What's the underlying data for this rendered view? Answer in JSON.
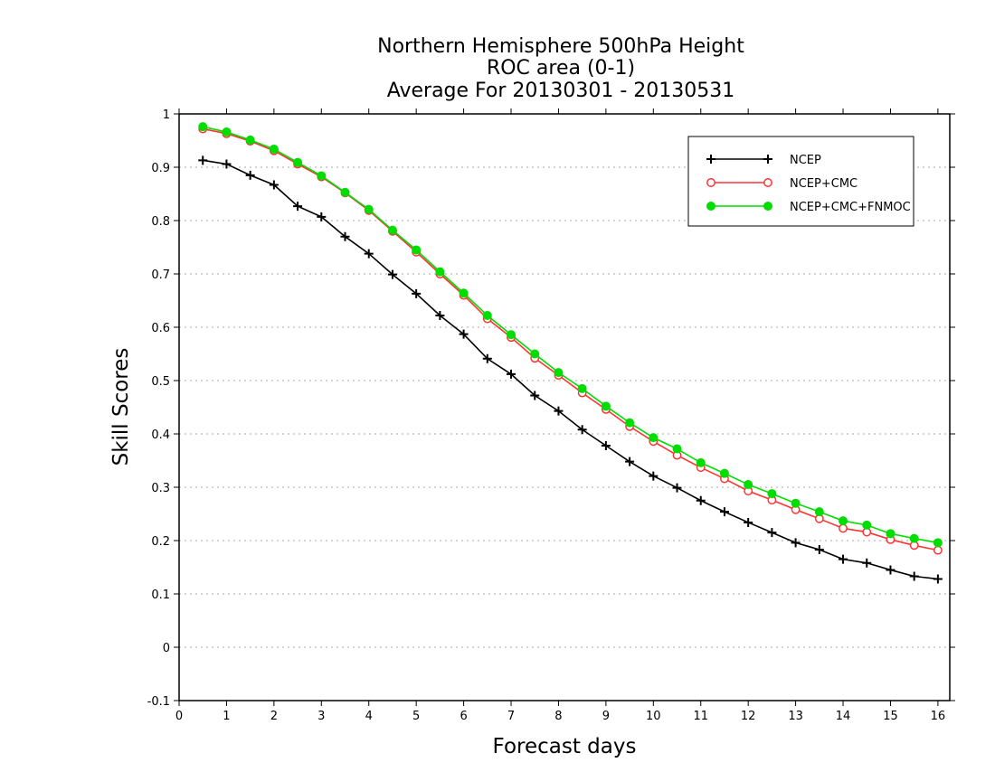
{
  "chart_data": {
    "type": "line",
    "title_lines": [
      "Northern Hemisphere 500hPa Height",
      "ROC area (0-1)",
      "Average For 20130301 - 20130531"
    ],
    "xlabel": "Forecast days",
    "ylabel": "Skill Scores",
    "xlim": [
      0,
      16.25
    ],
    "ylim": [
      -0.1,
      1
    ],
    "xticks": [
      0,
      1,
      2,
      3,
      4,
      5,
      6,
      7,
      8,
      9,
      10,
      11,
      12,
      13,
      14,
      15,
      16
    ],
    "yticks": [
      -0.1,
      0,
      0.1,
      0.2,
      0.3,
      0.4,
      0.5,
      0.6,
      0.7,
      0.8,
      0.9,
      1
    ],
    "ytick_labels": [
      "-0.1",
      "0",
      "0.1",
      "0.2",
      "0.3",
      "0.4",
      "0.5",
      "0.6",
      "0.7",
      "0.8",
      "0.9",
      "1"
    ],
    "grid": "horizontal dotted",
    "legend_position": "top-right",
    "x": [
      0.5,
      1.0,
      1.5,
      2.0,
      2.5,
      3.0,
      3.5,
      4.0,
      4.5,
      5.0,
      5.5,
      6.0,
      6.5,
      7.0,
      7.5,
      8.0,
      8.5,
      9.0,
      9.5,
      10.0,
      10.5,
      11.0,
      11.5,
      12.0,
      12.5,
      13.0,
      13.5,
      14.0,
      14.5,
      15.0,
      15.5,
      16.0
    ],
    "series": [
      {
        "name": "NCEP",
        "color": "#000000",
        "marker": "plus",
        "values": [
          0.913,
          0.906,
          0.885,
          0.867,
          0.827,
          0.807,
          0.77,
          0.738,
          0.699,
          0.663,
          0.622,
          0.587,
          0.541,
          0.512,
          0.472,
          0.443,
          0.408,
          0.378,
          0.348,
          0.321,
          0.299,
          0.275,
          0.254,
          0.234,
          0.215,
          0.196,
          0.183,
          0.165,
          0.158,
          0.145,
          0.133,
          0.128
        ]
      },
      {
        "name": "NCEP+CMC",
        "color": "#ff3333",
        "marker": "open-circle",
        "values": [
          0.972,
          0.963,
          0.949,
          0.931,
          0.906,
          0.882,
          0.852,
          0.819,
          0.78,
          0.741,
          0.7,
          0.66,
          0.616,
          0.581,
          0.542,
          0.51,
          0.477,
          0.446,
          0.414,
          0.386,
          0.36,
          0.337,
          0.316,
          0.293,
          0.276,
          0.258,
          0.241,
          0.223,
          0.216,
          0.202,
          0.191,
          0.182
        ]
      },
      {
        "name": "NCEP+CMC+FNMOC",
        "color": "#00dd00",
        "marker": "filled-circle",
        "values": [
          0.976,
          0.966,
          0.951,
          0.934,
          0.909,
          0.884,
          0.853,
          0.821,
          0.782,
          0.745,
          0.704,
          0.664,
          0.622,
          0.586,
          0.55,
          0.515,
          0.485,
          0.452,
          0.421,
          0.393,
          0.372,
          0.346,
          0.326,
          0.305,
          0.288,
          0.27,
          0.254,
          0.237,
          0.229,
          0.213,
          0.204,
          0.196
        ]
      }
    ]
  }
}
